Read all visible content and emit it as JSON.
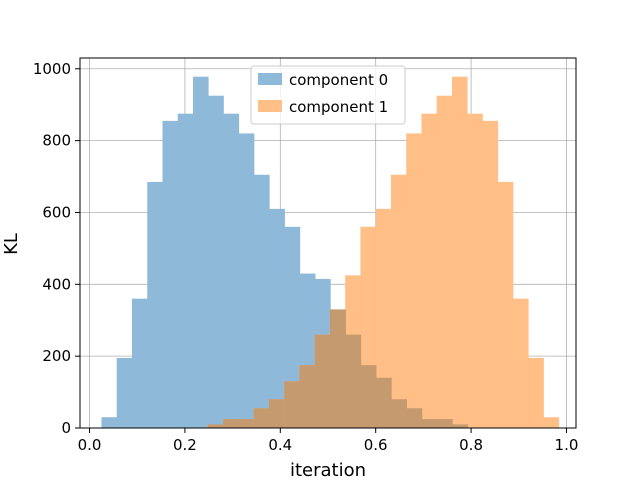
{
  "chart_data": {
    "type": "histogram",
    "title": "",
    "xlabel": "iteration",
    "ylabel": "KL",
    "xlim": [
      -0.02,
      1.02
    ],
    "ylim": [
      0,
      1030
    ],
    "xticks": [
      0.0,
      0.2,
      0.4,
      0.6,
      0.8,
      1.0
    ],
    "xtick_labels": [
      "0.0",
      "0.2",
      "0.4",
      "0.6",
      "0.8",
      "1.0"
    ],
    "yticks": [
      0,
      200,
      400,
      600,
      800,
      1000
    ],
    "ytick_labels": [
      "0",
      "200",
      "400",
      "600",
      "800",
      "1000"
    ],
    "grid": true,
    "legend_position": "top-center",
    "overlap_color": "#c69a6f",
    "series": [
      {
        "name": "component 0",
        "color": "#8fb9d9",
        "bins": [
          {
            "start": 0.025,
            "end": 0.057,
            "count": 30
          },
          {
            "start": 0.057,
            "end": 0.089,
            "count": 195
          },
          {
            "start": 0.089,
            "end": 0.121,
            "count": 360
          },
          {
            "start": 0.121,
            "end": 0.153,
            "count": 685
          },
          {
            "start": 0.153,
            "end": 0.185,
            "count": 855
          },
          {
            "start": 0.185,
            "end": 0.217,
            "count": 875
          },
          {
            "start": 0.217,
            "end": 0.249,
            "count": 978
          },
          {
            "start": 0.249,
            "end": 0.281,
            "count": 925
          },
          {
            "start": 0.281,
            "end": 0.313,
            "count": 875
          },
          {
            "start": 0.313,
            "end": 0.345,
            "count": 820
          },
          {
            "start": 0.345,
            "end": 0.377,
            "count": 705
          },
          {
            "start": 0.377,
            "end": 0.409,
            "count": 610
          },
          {
            "start": 0.409,
            "end": 0.441,
            "count": 560
          },
          {
            "start": 0.441,
            "end": 0.473,
            "count": 430
          },
          {
            "start": 0.473,
            "end": 0.505,
            "count": 415
          },
          {
            "start": 0.505,
            "end": 0.537,
            "count": 330
          },
          {
            "start": 0.537,
            "end": 0.569,
            "count": 260
          },
          {
            "start": 0.569,
            "end": 0.601,
            "count": 175
          },
          {
            "start": 0.601,
            "end": 0.633,
            "count": 140
          },
          {
            "start": 0.633,
            "end": 0.665,
            "count": 80
          },
          {
            "start": 0.665,
            "end": 0.697,
            "count": 55
          },
          {
            "start": 0.697,
            "end": 0.729,
            "count": 25
          },
          {
            "start": 0.729,
            "end": 0.761,
            "count": 25
          },
          {
            "start": 0.761,
            "end": 0.793,
            "count": 10
          }
        ]
      },
      {
        "name": "component 1",
        "color": "#ffbf86",
        "bins": [
          {
            "start": 0.248,
            "end": 0.28,
            "count": 10
          },
          {
            "start": 0.28,
            "end": 0.312,
            "count": 25
          },
          {
            "start": 0.312,
            "end": 0.344,
            "count": 25
          },
          {
            "start": 0.344,
            "end": 0.376,
            "count": 55
          },
          {
            "start": 0.376,
            "end": 0.408,
            "count": 80
          },
          {
            "start": 0.408,
            "end": 0.44,
            "count": 130
          },
          {
            "start": 0.44,
            "end": 0.472,
            "count": 175
          },
          {
            "start": 0.472,
            "end": 0.504,
            "count": 260
          },
          {
            "start": 0.504,
            "end": 0.536,
            "count": 330
          },
          {
            "start": 0.536,
            "end": 0.568,
            "count": 425
          },
          {
            "start": 0.568,
            "end": 0.6,
            "count": 560
          },
          {
            "start": 0.6,
            "end": 0.632,
            "count": 610
          },
          {
            "start": 0.632,
            "end": 0.664,
            "count": 705
          },
          {
            "start": 0.664,
            "end": 0.696,
            "count": 820
          },
          {
            "start": 0.696,
            "end": 0.728,
            "count": 875
          },
          {
            "start": 0.728,
            "end": 0.76,
            "count": 925
          },
          {
            "start": 0.76,
            "end": 0.792,
            "count": 978
          },
          {
            "start": 0.792,
            "end": 0.824,
            "count": 875
          },
          {
            "start": 0.824,
            "end": 0.856,
            "count": 855
          },
          {
            "start": 0.856,
            "end": 0.888,
            "count": 685
          },
          {
            "start": 0.888,
            "end": 0.92,
            "count": 360
          },
          {
            "start": 0.92,
            "end": 0.952,
            "count": 195
          },
          {
            "start": 0.952,
            "end": 0.984,
            "count": 30
          }
        ]
      }
    ]
  }
}
